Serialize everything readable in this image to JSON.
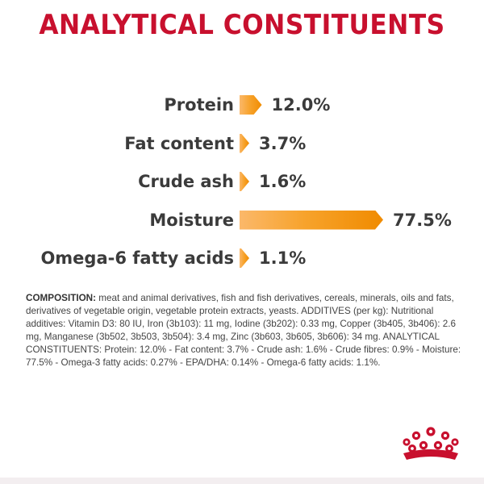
{
  "title": "ANALYTICAL CONSTITUENTS",
  "chart_data": {
    "type": "bar",
    "categories": [
      "Protein",
      "Fat content",
      "Crude ash",
      "Moisture",
      "Omega-6 fatty acids"
    ],
    "values": [
      12.0,
      3.7,
      1.6,
      77.5,
      1.1
    ],
    "value_labels": [
      "12.0%",
      "3.7%",
      "1.6%",
      "77.5%",
      "1.1%"
    ],
    "title": "ANALYTICAL CONSTITUENTS",
    "xlabel": "",
    "ylabel": "",
    "colors": {
      "bar_start": "#fbb86a",
      "bar_end": "#f08b00",
      "title": "#c8102e"
    }
  },
  "composition": {
    "heading": "COMPOSITION:",
    "text": " meat and animal derivatives, fish and fish derivatives, cereals, minerals, oils and fats, derivatives of vegetable origin, vegetable protein extracts, yeasts. ADDITIVES (per kg): Nutritional additives: Vitamin D3: 80 IU, Iron (3b103): 11 mg, Iodine (3b202): 0.33 mg, Copper (3b405, 3b406): 2.6 mg, Manganese (3b502, 3b503, 3b504): 3.4 mg, Zinc (3b603, 3b605, 3b606): 34 mg. ANALYTICAL CONSTITUENTS: Protein: 12.0% - Fat content: 3.7% - Crude ash: 1.6% - Crude fibres: 0.9% - Moisture: 77.5% - Omega-3 fatty acids: 0.27% - EPA/DHA: 0.14% - Omega-6 fatty acids: 1.1%."
  },
  "logo": {
    "icon": "royal-canin-crown-icon",
    "color": "#c8102e"
  }
}
